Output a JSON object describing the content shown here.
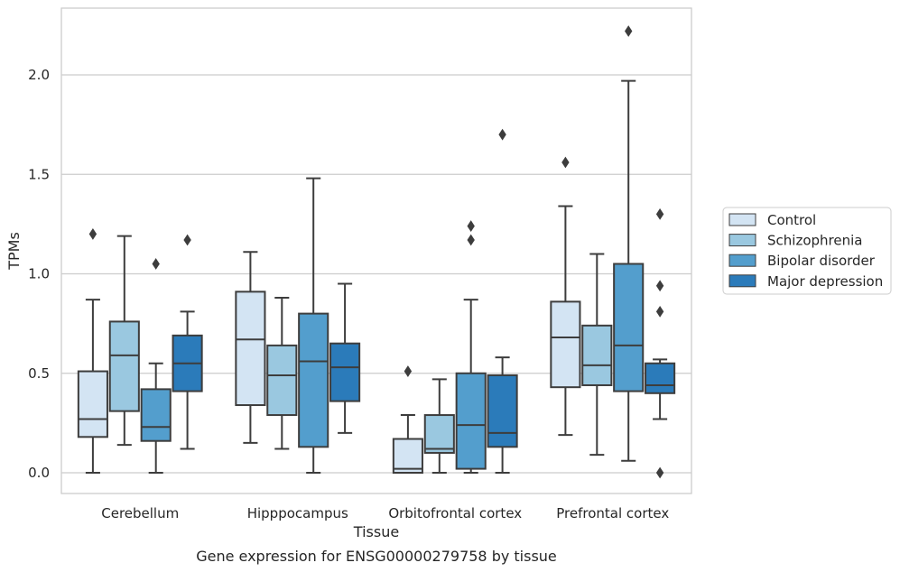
{
  "caption": "Gene expression for ENSG00000279758 by tissue",
  "chart_data": {
    "type": "box",
    "xlabel": "Tissue",
    "ylabel": "TPMs",
    "ylim": [
      -0.11,
      2.35
    ],
    "yticks": [
      0.0,
      0.5,
      1.0,
      1.5,
      2.0
    ],
    "ytick_labels": [
      "0.0",
      "0.5",
      "1.0",
      "1.5",
      "2.0"
    ],
    "grid": "horizontal",
    "legend_position": "right",
    "categories": [
      "Cerebellum",
      "Hipppocampus",
      "Orbitofrontal cortex",
      "Prefrontal cortex"
    ],
    "series": [
      {
        "name": "Control",
        "color": "#d3e4f3",
        "boxes": [
          {
            "whislo": 0.0,
            "q1": 0.18,
            "med": 0.27,
            "q3": 0.51,
            "whishi": 0.87,
            "fliers": [
              1.2
            ]
          },
          {
            "whislo": 0.15,
            "q1": 0.34,
            "med": 0.67,
            "q3": 0.91,
            "whishi": 1.11,
            "fliers": []
          },
          {
            "whislo": 0.0,
            "q1": 0.0,
            "med": 0.02,
            "q3": 0.17,
            "whishi": 0.29,
            "fliers": [
              0.51
            ]
          },
          {
            "whislo": 0.19,
            "q1": 0.43,
            "med": 0.68,
            "q3": 0.86,
            "whishi": 1.34,
            "fliers": [
              1.56
            ]
          }
        ]
      },
      {
        "name": "Schizophrenia",
        "color": "#9ac8e0",
        "boxes": [
          {
            "whislo": 0.14,
            "q1": 0.31,
            "med": 0.59,
            "q3": 0.76,
            "whishi": 1.19,
            "fliers": []
          },
          {
            "whislo": 0.12,
            "q1": 0.29,
            "med": 0.49,
            "q3": 0.64,
            "whishi": 0.88,
            "fliers": []
          },
          {
            "whislo": 0.0,
            "q1": 0.1,
            "med": 0.12,
            "q3": 0.29,
            "whishi": 0.47,
            "fliers": []
          },
          {
            "whislo": 0.09,
            "q1": 0.44,
            "med": 0.54,
            "q3": 0.74,
            "whishi": 1.1,
            "fliers": []
          }
        ]
      },
      {
        "name": "Bipolar disorder",
        "color": "#539ecd",
        "boxes": [
          {
            "whislo": 0.0,
            "q1": 0.16,
            "med": 0.23,
            "q3": 0.42,
            "whishi": 0.55,
            "fliers": [
              1.05
            ]
          },
          {
            "whislo": 0.0,
            "q1": 0.13,
            "med": 0.56,
            "q3": 0.8,
            "whishi": 1.48,
            "fliers": []
          },
          {
            "whislo": 0.0,
            "q1": 0.02,
            "med": 0.24,
            "q3": 0.5,
            "whishi": 0.87,
            "fliers": [
              1.24,
              1.17
            ]
          },
          {
            "whislo": 0.06,
            "q1": 0.41,
            "med": 0.64,
            "q3": 1.05,
            "whishi": 1.97,
            "fliers": [
              2.22
            ]
          }
        ]
      },
      {
        "name": "Major depression",
        "color": "#2b7bba",
        "boxes": [
          {
            "whislo": 0.12,
            "q1": 0.41,
            "med": 0.55,
            "q3": 0.69,
            "whishi": 0.81,
            "fliers": [
              1.17
            ]
          },
          {
            "whislo": 0.2,
            "q1": 0.36,
            "med": 0.53,
            "q3": 0.65,
            "whishi": 0.95,
            "fliers": []
          },
          {
            "whislo": 0.0,
            "q1": 0.13,
            "med": 0.2,
            "q3": 0.49,
            "whishi": 0.58,
            "fliers": [
              1.7
            ]
          },
          {
            "whislo": 0.27,
            "q1": 0.4,
            "med": 0.44,
            "q3": 0.55,
            "whishi": 0.57,
            "fliers": [
              1.3,
              0.94,
              0.81,
              0.0
            ]
          }
        ]
      }
    ]
  }
}
